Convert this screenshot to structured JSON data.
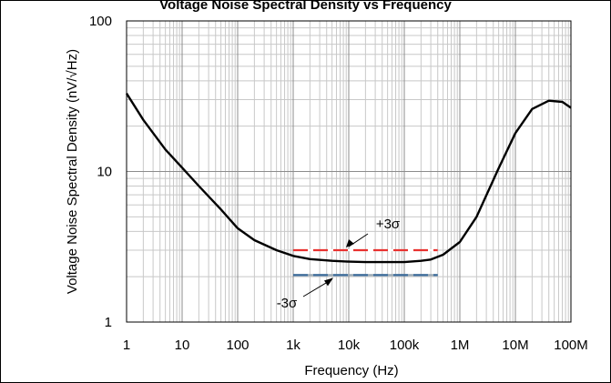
{
  "chart_data": {
    "type": "line",
    "title": "Voltage Noise Spectral Density vs Frequency",
    "xlabel": "Frequency (Hz)",
    "ylabel": "Voltage Noise Spectral Density (nV/√Hz)",
    "x_scale": "log",
    "y_scale": "log",
    "xlim": [
      1,
      100000000
    ],
    "ylim": [
      1,
      100
    ],
    "x_ticks": [
      1,
      10,
      100,
      1000,
      10000,
      100000,
      1000000,
      10000000,
      100000000
    ],
    "x_tick_labels": [
      "1",
      "10",
      "100",
      "1k",
      "10k",
      "100k",
      "1M",
      "10M",
      "100M"
    ],
    "y_ticks": [
      1,
      10,
      100
    ],
    "y_tick_labels": [
      "1",
      "10",
      "100"
    ],
    "grid": true,
    "series": [
      {
        "name": "",
        "color": "#000000",
        "x": [
          1,
          2,
          5,
          10,
          20,
          50,
          100,
          200,
          500,
          1000,
          2000,
          5000,
          10000,
          20000,
          50000,
          100000,
          200000,
          300000,
          500000,
          1000000,
          2000000,
          5000000,
          10000000,
          20000000,
          40000000,
          70000000,
          100000000
        ],
        "y": [
          33,
          22,
          14,
          10.6,
          8,
          5.6,
          4.2,
          3.5,
          3.0,
          2.75,
          2.62,
          2.55,
          2.52,
          2.5,
          2.5,
          2.5,
          2.55,
          2.6,
          2.8,
          3.4,
          5.0,
          10.5,
          18,
          26,
          29.5,
          29,
          26.5
        ]
      }
    ],
    "bands": [
      {
        "label": "+3σ",
        "color": "#e8312f",
        "dash_color": "#ffffff",
        "x": [
          1000,
          400000
        ],
        "y": 3.0
      },
      {
        "label": "-3σ",
        "color": "#3a6a9a",
        "dash_color": "#9aa8b3",
        "x": [
          1000,
          400000
        ],
        "y": 2.05
      }
    ]
  }
}
